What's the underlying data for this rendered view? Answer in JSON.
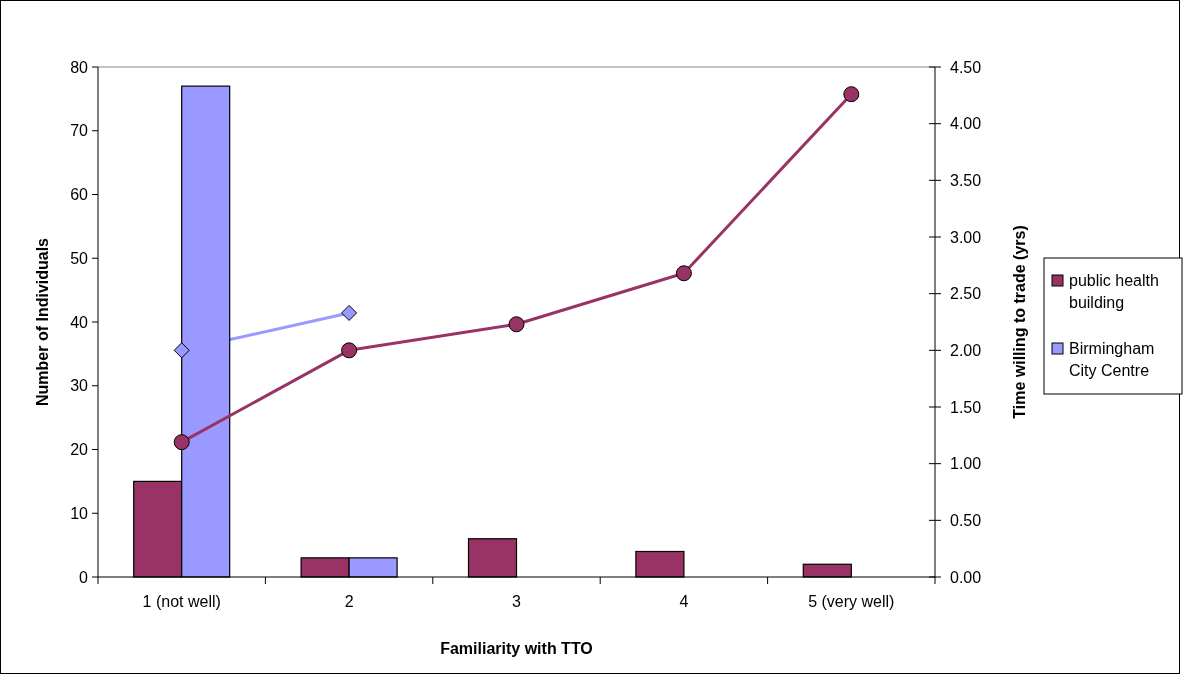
{
  "chart_data": {
    "type": "bar",
    "categories": [
      "1 (not well)",
      "2",
      "3",
      "4",
      "5 (very well)"
    ],
    "xlabel": "Familiarity with TTO",
    "ylabel": "Number of Individuals",
    "y2label": "Time willing to trade (yrs)",
    "ylim": [
      0,
      80
    ],
    "yticks": [
      0,
      10,
      20,
      30,
      40,
      50,
      60,
      70,
      80
    ],
    "y2lim": [
      0,
      4.5
    ],
    "y2ticks": [
      {
        "value": 0,
        "label": "0.00"
      },
      {
        "value": 0.5,
        "label": "0.50"
      },
      {
        "value": 1,
        "label": "1.00"
      },
      {
        "value": 1.5,
        "label": "1.50"
      },
      {
        "value": 2,
        "label": "2.00"
      },
      {
        "value": 2.5,
        "label": "2.50"
      },
      {
        "value": 3,
        "label": "3.00"
      },
      {
        "value": 3.5,
        "label": "3.50"
      },
      {
        "value": 4,
        "label": "4.00"
      },
      {
        "value": 4.5,
        "label": "4.50"
      }
    ],
    "legend": "right",
    "grid": false,
    "series": [
      {
        "name": "public health building",
        "color": "#993366",
        "values": [
          15,
          3,
          6,
          4,
          2
        ]
      },
      {
        "name": "Birmingham City Centre",
        "color": "#9999ff",
        "values": [
          77,
          3,
          null,
          null,
          null
        ]
      },
      {
        "type": "line",
        "axis": "y2",
        "marker": "diamond",
        "color": "#9999ff",
        "values": [
          2.0,
          2.33,
          null,
          null,
          null
        ]
      },
      {
        "type": "line",
        "axis": "y2",
        "marker": "circle",
        "color": "#993366",
        "values": [
          1.19,
          2.0,
          2.23,
          2.68,
          4.26
        ]
      }
    ]
  }
}
